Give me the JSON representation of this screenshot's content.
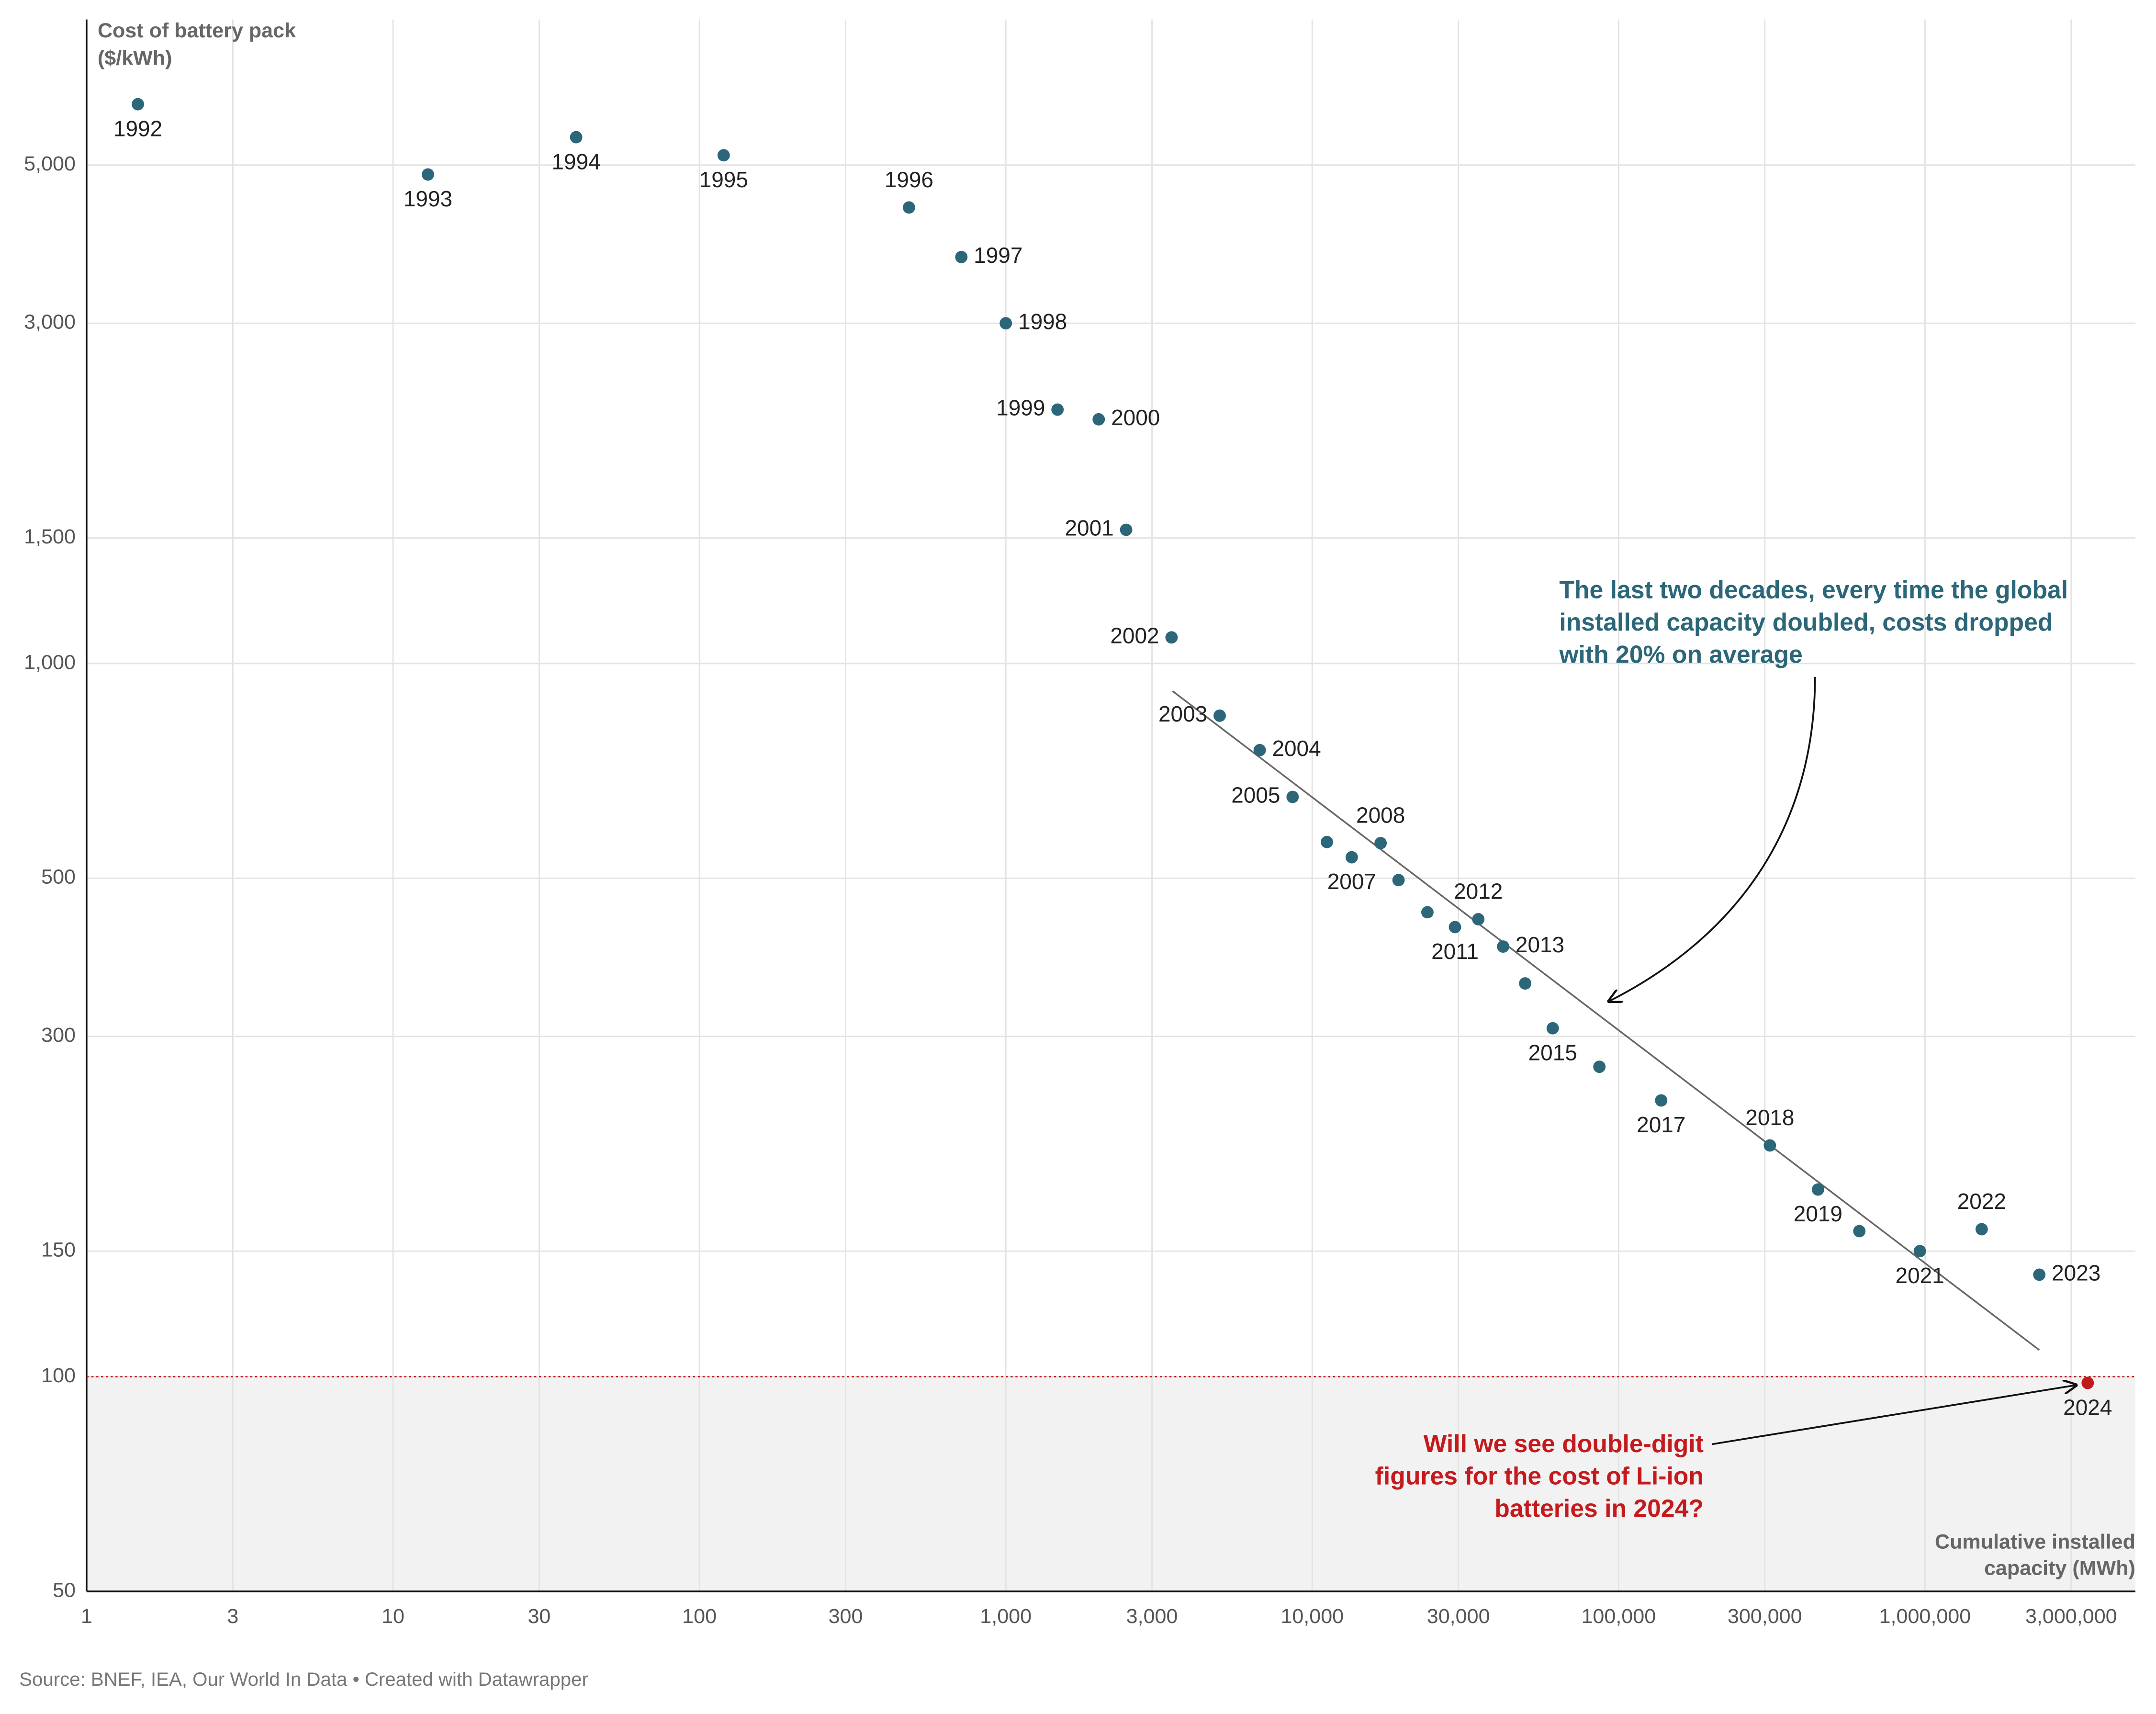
{
  "chart_data": {
    "type": "scatter",
    "y_title": [
      "Cost of battery pack",
      "($/kWh)"
    ],
    "x_title": [
      "Cumulative installed",
      "capacity (MWh)"
    ],
    "source": "Source: BNEF, IEA, Our World In Data • Created with Datawrapper",
    "x": [
      1.47,
      13,
      39.6,
      120,
      483,
      716,
      1000,
      1475,
      2010,
      2470,
      3475,
      4990,
      6740,
      8630,
      11170,
      13460,
      16720,
      19130,
      23770,
      29240,
      34840,
      41980,
      49550,
      60950,
      86550,
      137700,
      311700,
      447500,
      610500,
      962000,
      1531000,
      2361000,
      3396000
    ],
    "values": [
      6085,
      4850,
      5470,
      5160,
      4360,
      3715,
      3000,
      2270,
      2200,
      1540,
      1088,
      845,
      756,
      650,
      562,
      535,
      560,
      497,
      448,
      427,
      438,
      401,
      356,
      308,
      272,
      244,
      211,
      183,
      160,
      150,
      161,
      139,
      98
    ],
    "labels": [
      "1992",
      "1993",
      "1994",
      "1995",
      "1996",
      "1997",
      "1998",
      "1999",
      "2000",
      "2001",
      "2002",
      "2003",
      "2004",
      "2005",
      null,
      "2007",
      "2008",
      null,
      null,
      "2011",
      "2012",
      "2013",
      null,
      "2015",
      null,
      "2017",
      "2018",
      "2019",
      null,
      "2021",
      "2022",
      "2023",
      "2024"
    ],
    "colors": [
      "#2b6679",
      "#2b6679",
      "#2b6679",
      "#2b6679",
      "#2b6679",
      "#2b6679",
      "#2b6679",
      "#2b6679",
      "#2b6679",
      "#2b6679",
      "#2b6679",
      "#2b6679",
      "#2b6679",
      "#2b6679",
      "#2b6679",
      "#2b6679",
      "#2b6679",
      "#2b6679",
      "#2b6679",
      "#2b6679",
      "#2b6679",
      "#2b6679",
      "#2b6679",
      "#2b6679",
      "#2b6679",
      "#2b6679",
      "#2b6679",
      "#2b6679",
      "#2b6679",
      "#2b6679",
      "#2b6679",
      "#2b6679",
      "#c41a1d"
    ],
    "trend_line": {
      "x": [
        3500,
        2360000
      ],
      "values": [
        915,
        109
      ],
      "color": "#666666"
    },
    "threshold": {
      "value": 100,
      "color": "#c41a1d"
    },
    "annotations": [
      {
        "lines": [
          "The last two decades, every time the global",
          "installed capacity doubled, costs dropped",
          "with 20% on average"
        ],
        "color": "#2b6679"
      },
      {
        "lines": [
          "Will we see double-digit",
          "figures for the cost of Li-ion",
          "batteries in 2024?"
        ],
        "color": "#c41a1d"
      }
    ],
    "log_x": true,
    "log_y": true,
    "grid": true,
    "xlim": [
      1,
      4860000
    ],
    "ylim": [
      50,
      8000
    ],
    "xticks": [
      1,
      3,
      10,
      30,
      100,
      300,
      {
        "value": 1000,
        "label": "1,000"
      },
      {
        "value": 3000,
        "label": "3,000"
      },
      {
        "value": 10000,
        "label": "10,000"
      },
      {
        "value": 30000,
        "label": "30,000"
      },
      {
        "value": 100000,
        "label": "100,000"
      },
      {
        "value": 300000,
        "label": "300,000"
      },
      {
        "value": 1000000,
        "label": "1,000,000"
      },
      {
        "value": 3000000,
        "label": "3,000,000"
      }
    ],
    "yticks": [
      50,
      100,
      150,
      300,
      500,
      {
        "value": 1000,
        "label": "1,000"
      },
      {
        "value": 1500,
        "label": "1,500"
      },
      {
        "value": 3000,
        "label": "3,000"
      },
      {
        "value": 5000,
        "label": "5,000"
      }
    ]
  }
}
